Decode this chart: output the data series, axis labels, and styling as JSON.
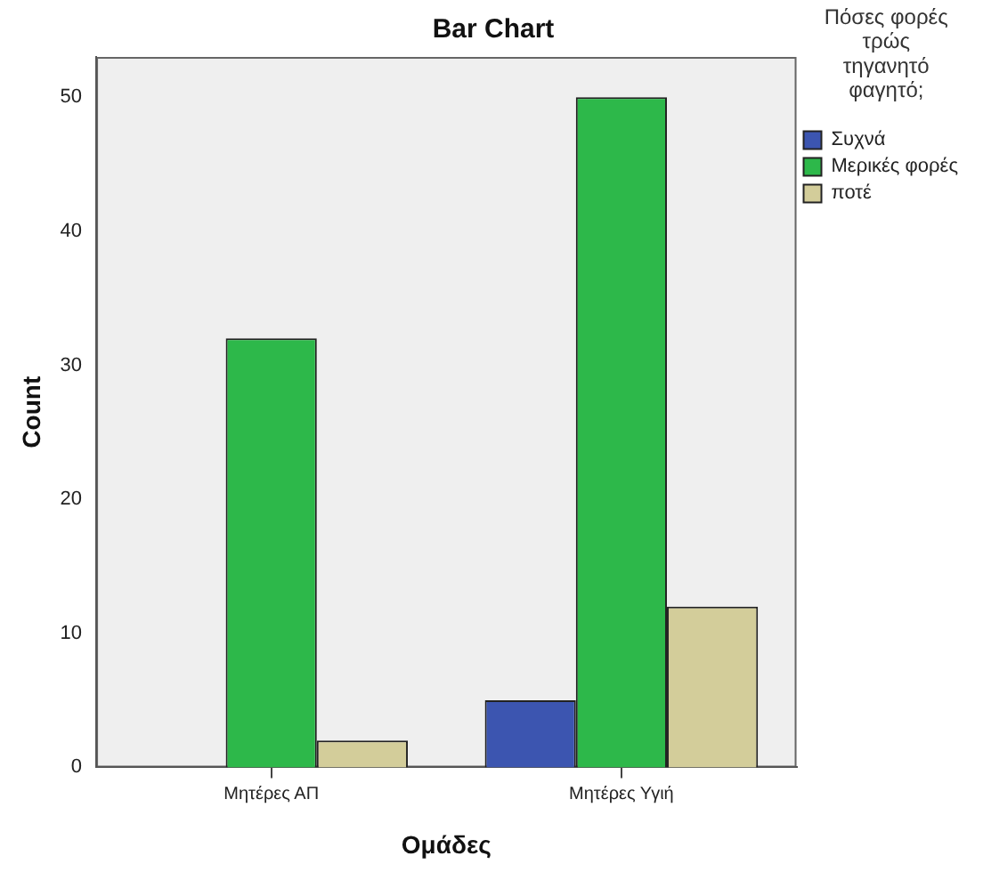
{
  "chart_data": {
    "type": "bar",
    "title": "Bar Chart",
    "xlabel": "Ομάδες",
    "ylabel": "Count",
    "legend_title": "Πόσες φορές τρώς τηγανητό φαγητό;",
    "categories": [
      "Μητέρες ΑΠ",
      "Μητέρες Υγιή"
    ],
    "series": [
      {
        "name": "Συχνά",
        "color": "#3c55b0",
        "values": [
          0,
          5
        ]
      },
      {
        "name": "Μερικές φορές",
        "color": "#2db84a",
        "values": [
          32,
          50
        ]
      },
      {
        "name": "ποτέ",
        "color": "#d3cd9a",
        "values": [
          2,
          12
        ]
      }
    ],
    "ylim": [
      0,
      53
    ],
    "yticks": [
      0,
      10,
      20,
      30,
      40,
      50
    ],
    "grid": false,
    "legend": "top right"
  }
}
